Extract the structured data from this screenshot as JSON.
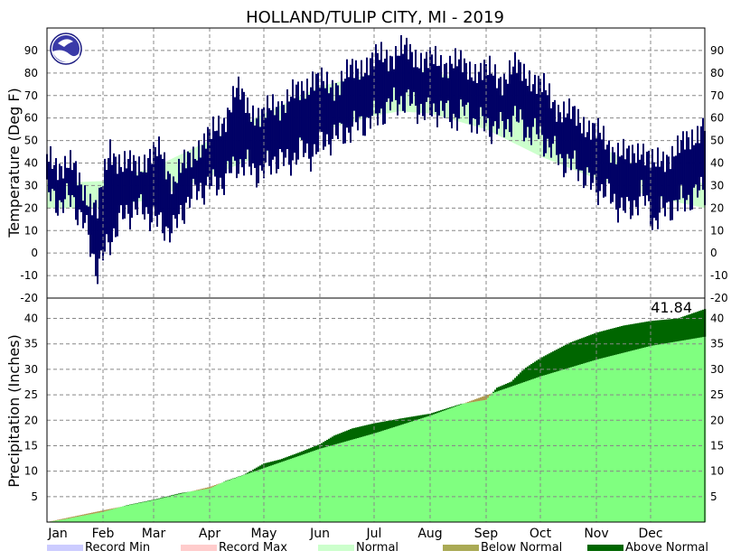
{
  "chart_data": [
    {
      "type": "line",
      "title": "HOLLAND/TULIP CITY, MI - 2019",
      "ylabel": "Temperature (Deg F)",
      "ylim": [
        -20,
        100
      ],
      "yticks": [
        -20,
        -10,
        0,
        10,
        20,
        30,
        40,
        50,
        60,
        70,
        80,
        90
      ],
      "months": [
        "Jan",
        "Feb",
        "Mar",
        "Apr",
        "May",
        "Jun",
        "Jul",
        "Aug",
        "Sep",
        "Oct",
        "Nov",
        "Dec"
      ],
      "grid": true,
      "colors": {
        "daily_range": "#000066",
        "normal_band": "#ccffcc"
      },
      "normal_band": {
        "day": [
          1,
          32,
          60,
          91,
          121,
          152,
          182,
          196,
          213,
          244,
          274,
          305,
          335,
          365
        ],
        "low": [
          20,
          20,
          24,
          34,
          44,
          54,
          61,
          63,
          62,
          55,
          43,
          33,
          25,
          20
        ],
        "high": [
          31,
          32,
          38,
          50,
          62,
          74,
          80,
          82,
          81,
          74,
          62,
          48,
          36,
          31
        ]
      },
      "daily_anchors": {
        "day": [
          1,
          8,
          15,
          22,
          29,
          36,
          43,
          50,
          57,
          64,
          71,
          78,
          85,
          92,
          99,
          106,
          113,
          120,
          127,
          134,
          141,
          148,
          155,
          162,
          169,
          176,
          183,
          190,
          197,
          204,
          211,
          218,
          225,
          232,
          239,
          246,
          253,
          260,
          267,
          274,
          281,
          288,
          295,
          302,
          309,
          316,
          323,
          330,
          337,
          344,
          351,
          358,
          365
        ],
        "low": [
          26,
          22,
          24,
          12,
          -8,
          6,
          16,
          20,
          18,
          12,
          10,
          22,
          28,
          30,
          32,
          40,
          38,
          35,
          42,
          40,
          45,
          44,
          50,
          52,
          55,
          58,
          60,
          65,
          68,
          66,
          62,
          64,
          60,
          63,
          58,
          56,
          55,
          60,
          54,
          52,
          45,
          40,
          38,
          30,
          28,
          22,
          18,
          26,
          14,
          20,
          22,
          25,
          28
        ],
        "high": [
          42,
          40,
          38,
          28,
          18,
          48,
          38,
          40,
          42,
          45,
          32,
          40,
          48,
          52,
          60,
          72,
          65,
          60,
          66,
          68,
          72,
          78,
          74,
          76,
          80,
          84,
          86,
          88,
          90,
          88,
          86,
          84,
          86,
          82,
          82,
          80,
          78,
          82,
          80,
          74,
          68,
          62,
          60,
          56,
          50,
          46,
          42,
          48,
          38,
          44,
          46,
          52,
          58
        ]
      }
    },
    {
      "type": "area",
      "ylabel": "Precipitation (Inches)",
      "ylim": [
        0,
        44
      ],
      "yticks": [
        5,
        10,
        15,
        20,
        25,
        30,
        35,
        40
      ],
      "grid": true,
      "total_label": "41.84",
      "colors": {
        "normal": "#80ff80",
        "above_normal": "#006600",
        "below_normal": "#b09a50"
      },
      "normal_cumulative": {
        "day": [
          1,
          32,
          60,
          91,
          121,
          152,
          182,
          213,
          244,
          274,
          305,
          335,
          365
        ],
        "value": [
          0,
          2.3,
          4.3,
          6.9,
          10.6,
          14.4,
          17.4,
          20.9,
          24.9,
          28.6,
          31.9,
          34.6,
          36.4
        ]
      },
      "actual_cumulative": {
        "day": [
          1,
          10,
          20,
          32,
          45,
          60,
          75,
          91,
          100,
          110,
          121,
          130,
          140,
          152,
          160,
          170,
          182,
          196,
          213,
          230,
          244,
          250,
          258,
          265,
          274,
          290,
          305,
          320,
          335,
          350,
          365
        ],
        "value": [
          0,
          0.5,
          1.2,
          2.0,
          3.3,
          4.4,
          5.7,
          6.6,
          8.1,
          9.3,
          11.5,
          12.3,
          13.6,
          15.3,
          17.0,
          18.4,
          19.4,
          20.3,
          21.3,
          23.2,
          24.0,
          26.4,
          27.6,
          30.1,
          32.2,
          35.2,
          37.2,
          38.6,
          39.5,
          40.0,
          41.84
        ]
      }
    }
  ],
  "legend": [
    {
      "label": "Record Min",
      "color": "#ccccff"
    },
    {
      "label": "Record Max",
      "color": "#ffcccc"
    },
    {
      "label": "Normal",
      "color": "#ccffcc"
    },
    {
      "label": "Below Normal",
      "color": "#aaaa55"
    },
    {
      "label": "Above Normal",
      "color": "#006600"
    }
  ]
}
